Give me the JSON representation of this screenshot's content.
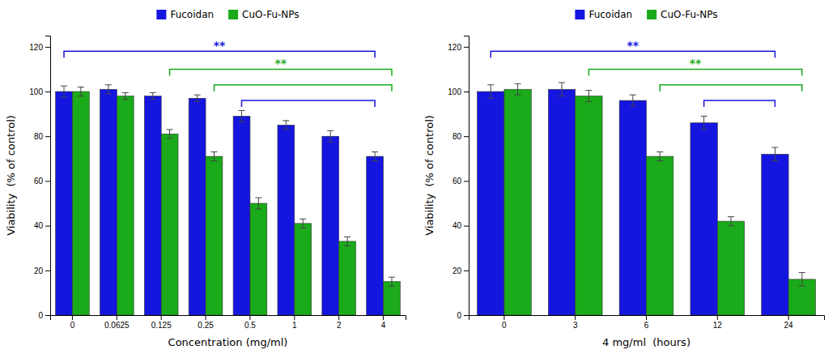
{
  "chart_data": [
    {
      "type": "bar",
      "categories": [
        "0",
        "0.0625",
        "0.125",
        "0.25",
        "0.5",
        "1",
        "2",
        "4"
      ],
      "series": [
        {
          "name": "Fucoidan",
          "color": "#1515e0",
          "values": [
            100,
            101,
            98,
            97,
            89,
            85,
            80,
            71
          ],
          "errors": [
            2.5,
            2.0,
            1.5,
            1.5,
            2.5,
            2.0,
            2.5,
            2.0
          ]
        },
        {
          "name": "CuO-Fu-NPs",
          "color": "#1aaa1a",
          "values": [
            100,
            98,
            81,
            71,
            50,
            41,
            33,
            15
          ],
          "errors": [
            2.0,
            1.5,
            2.0,
            2.0,
            2.5,
            2.0,
            2.0,
            2.0
          ]
        }
      ],
      "xlabel": "Concentration (mg/ml)",
      "ylabel": "Viability  (% of control)",
      "ylim": [
        0,
        125
      ],
      "yticks": [
        0,
        20,
        40,
        60,
        80,
        100,
        120
      ],
      "grid": false,
      "legend": "top",
      "annotations": [
        {
          "text": "**",
          "x1": "0",
          "x2": "4",
          "series": 0,
          "y": 118
        },
        {
          "text": "**",
          "x1": "0.125",
          "x2": "4",
          "series": 1,
          "y": 110
        },
        {
          "x1": "0.25",
          "x2": "4",
          "series": 1,
          "y": 103
        },
        {
          "x1": "0.5",
          "x2": "4",
          "series": 0,
          "y": 96
        }
      ]
    },
    {
      "type": "bar",
      "categories": [
        "0",
        "3",
        "6",
        "12",
        "24"
      ],
      "series": [
        {
          "name": "Fucoidan",
          "color": "#1515e0",
          "values": [
            100,
            101,
            96,
            86,
            72
          ],
          "errors": [
            3.0,
            3.0,
            2.5,
            3.0,
            3.0
          ]
        },
        {
          "name": "CuO-Fu-NPs",
          "color": "#1aaa1a",
          "values": [
            101,
            98,
            71,
            42,
            16
          ],
          "errors": [
            2.5,
            2.5,
            2.0,
            2.0,
            3.0
          ]
        }
      ],
      "xlabel": "4 mg/ml  (hours)",
      "ylabel": "Viability  (% of control)",
      "ylim": [
        0,
        125
      ],
      "yticks": [
        0,
        20,
        40,
        60,
        80,
        100,
        120
      ],
      "grid": false,
      "legend": "top",
      "annotations": [
        {
          "text": "**",
          "x1": "0",
          "x2": "24",
          "series": 0,
          "y": 118
        },
        {
          "text": "**",
          "x1": "3",
          "x2": "24",
          "series": 1,
          "y": 110
        },
        {
          "x1": "6",
          "x2": "24",
          "series": 1,
          "y": 103
        },
        {
          "x1": "12",
          "x2": "24",
          "series": 0,
          "y": 96
        }
      ]
    }
  ]
}
